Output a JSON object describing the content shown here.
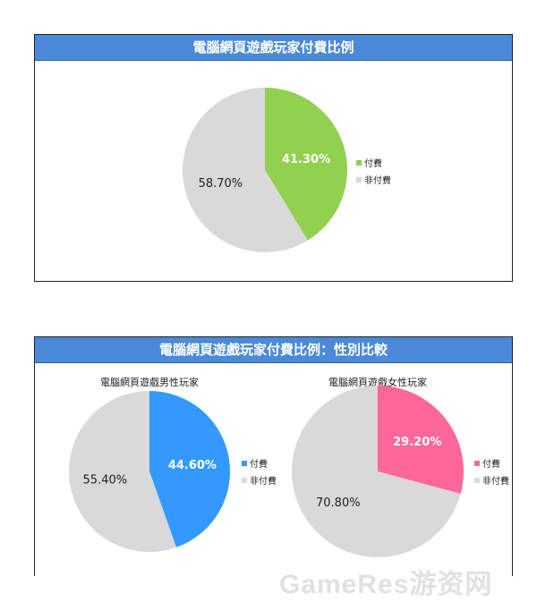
{
  "chart_data": [
    {
      "type": "pie",
      "title": "電腦網頁遊戲玩家付費比例",
      "slices": [
        {
          "label": "付費",
          "value": 41.3,
          "display": "41.30%",
          "color": "#92d050"
        },
        {
          "label": "非付費",
          "value": 58.7,
          "display": "58.70%",
          "color": "#d9d9d9"
        }
      ],
      "legend_position": "right"
    },
    {
      "type": "pie",
      "title": "電腦網頁遊戲男性玩家",
      "slices": [
        {
          "label": "付費",
          "value": 44.6,
          "display": "44.60%",
          "color": "#3399ff"
        },
        {
          "label": "非付費",
          "value": 55.4,
          "display": "55.40%",
          "color": "#d9d9d9"
        }
      ],
      "legend_position": "right"
    },
    {
      "type": "pie",
      "title": "電腦網頁遊戲女性玩家",
      "slices": [
        {
          "label": "付費",
          "value": 29.2,
          "display": "29.20%",
          "color": "#ff6699"
        },
        {
          "label": "非付費",
          "value": 70.8,
          "display": "70.80%",
          "color": "#d9d9d9"
        }
      ],
      "legend_position": "right"
    }
  ],
  "panel2_title": "電腦網頁遊戲玩家付費比例：性別比較",
  "watermark": "GameRes游资网"
}
